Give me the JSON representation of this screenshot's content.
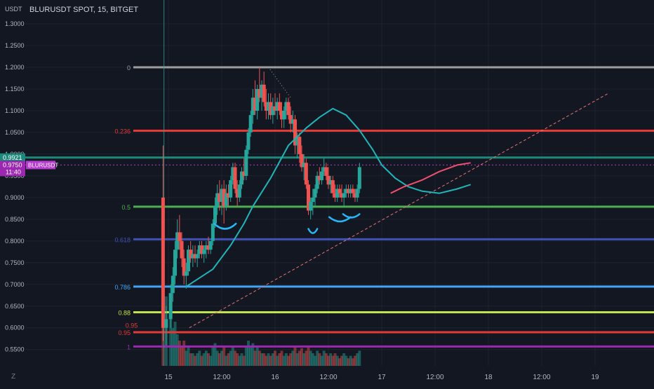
{
  "chart_data": {
    "type": "candlestick",
    "title": "BLURUSDT SPOT, 15, BITGET",
    "y_unit": "USDT",
    "ylim": [
      0.5,
      1.33
    ],
    "y_ticks": [
      "1.3000",
      "1.2500",
      "1.2000",
      "1.1500",
      "1.1000",
      "1.0500",
      "1.0000",
      "0.9500",
      "0.9000",
      "0.8500",
      "0.8000",
      "0.7500",
      "0.7000",
      "0.6500",
      "0.6000",
      "0.5500"
    ],
    "x_ticks": [
      "15",
      "12:00",
      "16",
      "12:00",
      "17",
      "12:00",
      "18",
      "12:00",
      "19"
    ],
    "x_ticks_hours": [
      0,
      12,
      24,
      36,
      48,
      60,
      72,
      84,
      96
    ],
    "fib_levels": [
      {
        "label": "0",
        "price": 1.2,
        "color": "#9e9e9e"
      },
      {
        "label": "0.236",
        "price": 1.054,
        "color": "#e53935"
      },
      {
        "label": "0.5",
        "price": 0.879,
        "color": "#4caf50"
      },
      {
        "label": "0.618",
        "price": 0.804,
        "color": "#3f51b5"
      },
      {
        "label": "0.786",
        "price": 0.695,
        "color": "#42a5f5"
      },
      {
        "label": "0.88",
        "price": 0.636,
        "color": "#c0e24a"
      },
      {
        "label": "0.95",
        "price": 0.59,
        "color": "#e53935"
      },
      {
        "label": "1",
        "price": 0.557,
        "color": "#9c27b0"
      }
    ],
    "extra_labels": [
      {
        "label": "0.95",
        "price": 0.605,
        "x_hour": -6.9,
        "color": "#e53935"
      }
    ],
    "horizontal_lines": [
      {
        "price": 0.9921,
        "color": "#1b8a7a"
      }
    ],
    "current_price_line": {
      "price": 0.975,
      "color": "#b73bd1"
    },
    "price_labels": [
      {
        "text": "0.9921",
        "price": 0.9921,
        "color": "#1b8a7a"
      },
      {
        "text": "0.9750",
        "subtext": "11:40",
        "price": 0.975,
        "color": "#9c27b0"
      }
    ],
    "symbol_badge": {
      "text": "BLURUSDT",
      "price": 0.975
    },
    "trendline": {
      "from": {
        "hour": 4.7,
        "price": 0.6
      },
      "to": {
        "hour": 99,
        "price": 1.14
      },
      "color": "#e57373"
    },
    "ma_teal": [
      [
        4,
        0.695
      ],
      [
        10,
        0.735
      ],
      [
        14,
        0.79
      ],
      [
        17,
        0.84
      ],
      [
        19,
        0.88
      ],
      [
        23,
        0.945
      ],
      [
        27,
        1.02
      ],
      [
        31,
        1.06
      ],
      [
        34,
        1.085
      ],
      [
        37,
        1.105
      ],
      [
        40,
        1.09
      ],
      [
        43,
        1.055
      ],
      [
        46,
        1.01
      ],
      [
        48,
        0.975
      ],
      [
        51,
        0.945
      ],
      [
        54,
        0.925
      ],
      [
        57,
        0.915
      ],
      [
        61,
        0.91
      ],
      [
        65,
        0.92
      ],
      [
        68,
        0.93
      ]
    ],
    "ma_pink": [
      [
        50,
        0.91
      ],
      [
        53,
        0.925
      ],
      [
        57,
        0.94
      ],
      [
        61,
        0.96
      ],
      [
        65,
        0.975
      ],
      [
        68,
        0.98
      ]
    ],
    "candles": [
      [
        -1.2,
        0.9,
        1.02,
        0.57,
        0.6
      ],
      [
        -0.5,
        0.6,
        0.65,
        0.56,
        0.62
      ],
      [
        0.5,
        0.62,
        0.7,
        0.6,
        0.68
      ],
      [
        1,
        0.68,
        0.74,
        0.66,
        0.72
      ],
      [
        1.5,
        0.72,
        0.8,
        0.7,
        0.78
      ],
      [
        2,
        0.78,
        0.85,
        0.76,
        0.82
      ],
      [
        2.5,
        0.82,
        0.86,
        0.78,
        0.8
      ],
      [
        3,
        0.8,
        0.82,
        0.74,
        0.76
      ],
      [
        3.5,
        0.76,
        0.78,
        0.7,
        0.72
      ],
      [
        4,
        0.72,
        0.75,
        0.69,
        0.73
      ],
      [
        4.5,
        0.73,
        0.79,
        0.72,
        0.78
      ],
      [
        5,
        0.78,
        0.8,
        0.75,
        0.76
      ],
      [
        5.5,
        0.76,
        0.79,
        0.74,
        0.77
      ],
      [
        6,
        0.77,
        0.79,
        0.75,
        0.76
      ],
      [
        6.5,
        0.76,
        0.78,
        0.74,
        0.77
      ],
      [
        7,
        0.77,
        0.8,
        0.76,
        0.79
      ],
      [
        7.5,
        0.79,
        0.8,
        0.76,
        0.77
      ],
      [
        8,
        0.77,
        0.79,
        0.75,
        0.78
      ],
      [
        8.5,
        0.78,
        0.8,
        0.76,
        0.79
      ],
      [
        9,
        0.79,
        0.81,
        0.77,
        0.78
      ],
      [
        9.5,
        0.78,
        0.8,
        0.77,
        0.8
      ],
      [
        10,
        0.8,
        0.85,
        0.79,
        0.84
      ],
      [
        10.5,
        0.84,
        0.9,
        0.83,
        0.88
      ],
      [
        11,
        0.88,
        0.93,
        0.86,
        0.91
      ],
      [
        11.5,
        0.91,
        0.94,
        0.87,
        0.89
      ],
      [
        12,
        0.89,
        0.93,
        0.86,
        0.92
      ],
      [
        12.5,
        0.92,
        0.94,
        0.84,
        0.88
      ],
      [
        13,
        0.88,
        0.93,
        0.87,
        0.91
      ],
      [
        13.5,
        0.91,
        0.93,
        0.88,
        0.9
      ],
      [
        14,
        0.9,
        0.95,
        0.89,
        0.94
      ],
      [
        14.5,
        0.94,
        0.98,
        0.93,
        0.97
      ],
      [
        15,
        0.97,
        0.98,
        0.91,
        0.92
      ],
      [
        15.5,
        0.92,
        0.94,
        0.88,
        0.9
      ],
      [
        16,
        0.9,
        0.94,
        0.89,
        0.93
      ],
      [
        16.5,
        0.93,
        0.97,
        0.92,
        0.96
      ],
      [
        17,
        0.96,
        0.99,
        0.94,
        0.95
      ],
      [
        17.5,
        0.95,
        1.02,
        0.94,
        1.01
      ],
      [
        18,
        1.01,
        1.06,
        1.0,
        1.05
      ],
      [
        18.5,
        1.05,
        1.1,
        1.04,
        1.09
      ],
      [
        19,
        1.09,
        1.15,
        1.07,
        1.13
      ],
      [
        19.5,
        1.13,
        1.17,
        1.09,
        1.1
      ],
      [
        20,
        1.1,
        1.16,
        1.08,
        1.15
      ],
      [
        20.5,
        1.15,
        1.2,
        1.12,
        1.13
      ],
      [
        21,
        1.13,
        1.17,
        1.1,
        1.16
      ],
      [
        21.5,
        1.16,
        1.19,
        1.11,
        1.12
      ],
      [
        22,
        1.12,
        1.15,
        1.08,
        1.1
      ],
      [
        22.5,
        1.1,
        1.14,
        1.08,
        1.12
      ],
      [
        23,
        1.12,
        1.14,
        1.08,
        1.09
      ],
      [
        23.5,
        1.09,
        1.13,
        1.07,
        1.11
      ],
      [
        24,
        1.11,
        1.14,
        1.09,
        1.1
      ],
      [
        24.5,
        1.1,
        1.13,
        1.08,
        1.12
      ],
      [
        25,
        1.12,
        1.14,
        1.09,
        1.1
      ],
      [
        25.5,
        1.1,
        1.12,
        1.06,
        1.08
      ],
      [
        26,
        1.08,
        1.11,
        1.06,
        1.1
      ],
      [
        26.5,
        1.1,
        1.13,
        1.08,
        1.12
      ],
      [
        27,
        1.12,
        1.13,
        1.08,
        1.09
      ],
      [
        27.5,
        1.09,
        1.11,
        1.05,
        1.07
      ],
      [
        28,
        1.07,
        1.1,
        1.05,
        1.08
      ],
      [
        28.5,
        1.08,
        1.09,
        1.0,
        1.02
      ],
      [
        29,
        1.02,
        1.05,
        0.99,
        1.04
      ],
      [
        29.5,
        1.04,
        1.05,
        0.98,
        1.0
      ],
      [
        30,
        1.0,
        1.02,
        0.96,
        0.97
      ],
      [
        30.5,
        0.97,
        1.0,
        0.94,
        0.98
      ],
      [
        31,
        0.98,
        0.99,
        0.92,
        0.93
      ],
      [
        31.5,
        0.93,
        0.94,
        0.86,
        0.87
      ],
      [
        32,
        0.87,
        0.9,
        0.85,
        0.89
      ],
      [
        32.5,
        0.89,
        0.92,
        0.86,
        0.9
      ],
      [
        33,
        0.9,
        0.93,
        0.88,
        0.92
      ],
      [
        33.5,
        0.92,
        0.96,
        0.91,
        0.95
      ],
      [
        34,
        0.95,
        0.97,
        0.93,
        0.94
      ],
      [
        34.5,
        0.94,
        0.97,
        0.93,
        0.96
      ],
      [
        35,
        0.96,
        0.99,
        0.95,
        0.97
      ],
      [
        35.5,
        0.97,
        0.98,
        0.94,
        0.95
      ],
      [
        36,
        0.95,
        0.97,
        0.92,
        0.93
      ],
      [
        36.5,
        0.93,
        0.95,
        0.91,
        0.94
      ],
      [
        37,
        0.94,
        0.95,
        0.9,
        0.91
      ],
      [
        37.5,
        0.91,
        0.93,
        0.89,
        0.9
      ],
      [
        38,
        0.9,
        0.93,
        0.89,
        0.92
      ],
      [
        38.5,
        0.92,
        0.93,
        0.9,
        0.91
      ],
      [
        39,
        0.91,
        0.93,
        0.89,
        0.9
      ],
      [
        39.5,
        0.9,
        0.92,
        0.88,
        0.91
      ],
      [
        40,
        0.91,
        0.93,
        0.9,
        0.92
      ],
      [
        40.5,
        0.92,
        0.93,
        0.9,
        0.91
      ],
      [
        41,
        0.91,
        0.93,
        0.9,
        0.92
      ],
      [
        41.5,
        0.92,
        0.93,
        0.9,
        0.91
      ],
      [
        42,
        0.91,
        0.92,
        0.89,
        0.9
      ],
      [
        42.5,
        0.9,
        0.93,
        0.89,
        0.92
      ],
      [
        43,
        0.92,
        0.98,
        0.91,
        0.97
      ]
    ],
    "volume": [
      [
        -1.2,
        1
      ],
      [
        -0.5,
        0.55
      ],
      [
        0.5,
        0.4
      ],
      [
        1,
        0.3
      ],
      [
        1.5,
        0.35
      ],
      [
        2,
        0.25
      ],
      [
        2.5,
        0.2
      ],
      [
        3,
        0.15
      ],
      [
        3.5,
        0.2
      ],
      [
        4,
        0.12
      ],
      [
        4.5,
        0.15
      ],
      [
        5,
        0.1
      ],
      [
        5.5,
        0.1
      ],
      [
        6,
        0.08
      ],
      [
        6.5,
        0.1
      ],
      [
        7,
        0.12
      ],
      [
        7.5,
        0.08
      ],
      [
        8,
        0.1
      ],
      [
        8.5,
        0.12
      ],
      [
        9,
        0.1
      ],
      [
        9.5,
        0.08
      ],
      [
        10,
        0.15
      ],
      [
        10.5,
        0.18
      ],
      [
        11,
        0.12
      ],
      [
        11.5,
        0.1
      ],
      [
        12,
        0.12
      ],
      [
        12.5,
        0.15
      ],
      [
        13,
        0.08
      ],
      [
        13.5,
        0.1
      ],
      [
        14,
        0.12
      ],
      [
        14.5,
        0.15
      ],
      [
        15,
        0.12
      ],
      [
        15.5,
        0.1
      ],
      [
        16,
        0.08
      ],
      [
        16.5,
        0.1
      ],
      [
        17,
        0.08
      ],
      [
        17.5,
        0.15
      ],
      [
        18,
        0.2
      ],
      [
        18.5,
        0.15
      ],
      [
        19,
        0.18
      ],
      [
        19.5,
        0.12
      ],
      [
        20,
        0.15
      ],
      [
        20.5,
        0.12
      ],
      [
        21,
        0.1
      ],
      [
        21.5,
        0.1
      ],
      [
        22,
        0.08
      ],
      [
        22.5,
        0.1
      ],
      [
        23,
        0.08
      ],
      [
        23.5,
        0.1
      ],
      [
        24,
        0.12
      ],
      [
        24.5,
        0.08
      ],
      [
        25,
        0.1
      ],
      [
        25.5,
        0.12
      ],
      [
        26,
        0.08
      ],
      [
        26.5,
        0.1
      ],
      [
        27,
        0.08
      ],
      [
        27.5,
        0.1
      ],
      [
        28,
        0.12
      ],
      [
        28.5,
        0.15
      ],
      [
        29,
        0.1
      ],
      [
        29.5,
        0.12
      ],
      [
        30,
        0.14
      ],
      [
        30.5,
        0.1
      ],
      [
        31,
        0.12
      ],
      [
        31.5,
        0.16
      ],
      [
        32,
        0.12
      ],
      [
        32.5,
        0.1
      ],
      [
        33,
        0.08
      ],
      [
        33.5,
        0.12
      ],
      [
        34,
        0.1
      ],
      [
        34.5,
        0.08
      ],
      [
        35,
        0.12
      ],
      [
        35.5,
        0.1
      ],
      [
        36,
        0.08
      ],
      [
        36.5,
        0.1
      ],
      [
        37,
        0.08
      ],
      [
        37.5,
        0.1
      ],
      [
        38,
        0.08
      ],
      [
        38.5,
        0.06
      ],
      [
        39,
        0.08
      ],
      [
        39.5,
        0.1
      ],
      [
        40,
        0.08
      ],
      [
        40.5,
        0.06
      ],
      [
        41,
        0.08
      ],
      [
        41.5,
        0.06
      ],
      [
        42,
        0.08
      ],
      [
        42.5,
        0.1
      ],
      [
        43,
        0.12
      ]
    ],
    "colors": {
      "bg": "#131722",
      "grid": "#1e222d",
      "text": "#b2b5be",
      "up": "#26a69a",
      "down": "#ef5350",
      "teal_ma": "#1fb5b8",
      "pink_ma": "#f0506e",
      "cup": "#29b6f6"
    },
    "cup_marks": [
      {
        "from": [
          10.3,
          0.84
        ],
        "to": [
          15.2,
          0.84
        ],
        "depth": 0.012
      },
      {
        "from": [
          31.5,
          0.828
        ],
        "to": [
          33.5,
          0.828
        ],
        "depth": 0.01
      },
      {
        "from": [
          36.2,
          0.855
        ],
        "to": [
          41,
          0.855
        ],
        "depth": 0.01
      },
      {
        "from": [
          39.3,
          0.862
        ],
        "to": [
          43,
          0.862
        ],
        "depth": 0.008
      }
    ],
    "peak_dotted": {
      "from": [
        22.5,
        1.2
      ],
      "to": [
        27.5,
        1.13
      ],
      "color": "#9e9e9e"
    },
    "footer_icon": "z-logo-icon"
  }
}
